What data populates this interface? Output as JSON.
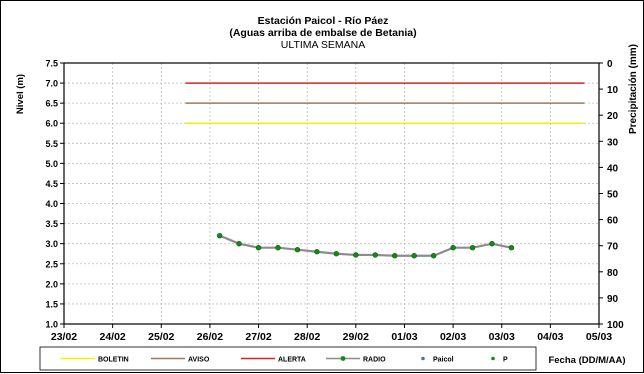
{
  "chart_data": {
    "type": "line",
    "title": "Estación Paicol  - Río Páez",
    "subtitle": "(Aguas arriba de embalse de Betania)",
    "subtitle2": "ULTIMA SEMANA",
    "ylabel": "Nivel (m)",
    "y2label": "Precipitación (mm)",
    "xlabel": "Fecha  (DD/M/AA)",
    "ylim": [
      1.0,
      7.5
    ],
    "y2lim": [
      0,
      100
    ],
    "y2_inverted": true,
    "yticks": [
      "1.0",
      "1.5",
      "2.0",
      "2.5",
      "3.0",
      "3.5",
      "4.0",
      "4.5",
      "5.0",
      "5.5",
      "6.0",
      "6.5",
      "7.0",
      "7.5"
    ],
    "y2ticks": [
      "0",
      "10",
      "20",
      "30",
      "40",
      "50",
      "60",
      "70",
      "80",
      "90",
      "100"
    ],
    "x_categories": [
      "23/02",
      "24/02",
      "25/02",
      "26/02",
      "27/02",
      "28/02",
      "29/02",
      "01/03",
      "02/03",
      "03/03",
      "04/03",
      "05/03"
    ],
    "grid": true,
    "thresholds": [
      {
        "name": "BOLETIN",
        "value": 6.0,
        "x_start": 2.5,
        "x_end": 10.7,
        "color": "#f2f200"
      },
      {
        "name": "AVISO",
        "value": 6.5,
        "x_start": 2.5,
        "x_end": 10.7,
        "color": "#a0785a"
      },
      {
        "name": "ALERTA",
        "value": 7.0,
        "x_start": 2.5,
        "x_end": 10.7,
        "color": "#e02020"
      }
    ],
    "series": [
      {
        "name": "RADIO",
        "color": "#8c8c8c",
        "marker_color": "#138a13",
        "x": [
          3.2,
          3.6,
          4.0,
          4.4,
          4.8,
          5.2,
          5.6,
          6.0,
          6.4,
          6.8,
          7.2,
          7.6,
          8.0,
          8.4,
          8.8,
          9.2
        ],
        "values": [
          3.2,
          3.0,
          2.9,
          2.9,
          2.85,
          2.8,
          2.75,
          2.72,
          2.72,
          2.7,
          2.7,
          2.7,
          2.9,
          2.9,
          3.0,
          2.9
        ]
      }
    ],
    "legend": [
      {
        "name": "BOLETIN",
        "kind": "line",
        "color": "#f2f200"
      },
      {
        "name": "AVISO",
        "kind": "line",
        "color": "#a0785a"
      },
      {
        "name": "ALERTA",
        "kind": "line",
        "color": "#e02020"
      },
      {
        "name": "RADIO",
        "kind": "line-marker",
        "color": "#8c8c8c",
        "marker_color": "#138a13"
      },
      {
        "name": "Paicol",
        "kind": "marker",
        "color": "#4a6fb5"
      },
      {
        "name": "P",
        "kind": "marker",
        "color": "#138a13"
      }
    ],
    "legend_position": "bottom"
  }
}
